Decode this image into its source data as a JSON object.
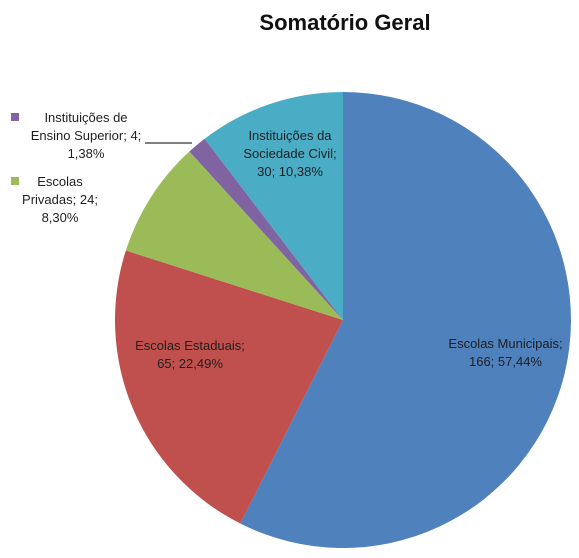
{
  "chart_data": {
    "type": "pie",
    "title": "Somatório Geral",
    "categories": [
      "Escolas Municipais",
      "Escolas Estaduais",
      "Escolas Privadas",
      "Instituições de Ensino Superior",
      "Instituições da Sociedade Civil"
    ],
    "values": [
      166,
      65,
      24,
      4,
      30
    ],
    "value_labels": [
      "166; 57,44%",
      "65; 22,49%",
      "24; 8,30%",
      "4; 1,38%",
      "30; 10,38%"
    ],
    "label_separator": "; ",
    "colors": [
      "#4f81bd",
      "#c0504d",
      "#9bbb59",
      "#8064a2",
      "#4bacc6"
    ]
  }
}
